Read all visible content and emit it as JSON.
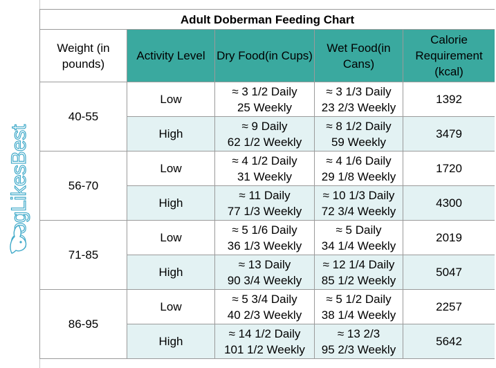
{
  "title": "Adult Doberman Feeding Chart",
  "watermark": "DogLikesBest",
  "colors": {
    "header_teal": "#3aa99f",
    "alt_row": "#e3f2f3",
    "logo_blue": "#3fa9c9"
  },
  "headers": {
    "weight": "Weight (in pounds)",
    "activity": "Activity Level",
    "dry": "Dry Food(in Cups)",
    "wet": "Wet Food(in Cans)",
    "calorie": "Calorie Requirement (kcal)"
  },
  "groups": [
    {
      "weight": "40-55",
      "rows": [
        {
          "activity": "Low",
          "dry_daily": "≈ 3 1/2 Daily",
          "dry_weekly": "25 Weekly",
          "wet_daily": "≈ 3 1/3 Daily",
          "wet_weekly": "23 2/3 Weekly",
          "kcal": "1392"
        },
        {
          "activity": "High",
          "dry_daily": "≈ 9 Daily",
          "dry_weekly": "62 1/2 Weekly",
          "wet_daily": "≈ 8 1/2 Daily",
          "wet_weekly": "59 Weekly",
          "kcal": "3479"
        }
      ]
    },
    {
      "weight": "56-70",
      "rows": [
        {
          "activity": "Low",
          "dry_daily": "≈ 4 1/2 Daily",
          "dry_weekly": "31 Weekly",
          "wet_daily": "≈ 4 1/6 Daily",
          "wet_weekly": "29 1/8 Weekly",
          "kcal": "1720"
        },
        {
          "activity": "High",
          "dry_daily": "≈ 11 Daily",
          "dry_weekly": "77 1/3 Weekly",
          "wet_daily": "≈ 10 1/3 Daily",
          "wet_weekly": "72 3/4 Weekly",
          "kcal": "4300"
        }
      ]
    },
    {
      "weight": "71-85",
      "rows": [
        {
          "activity": "Low",
          "dry_daily": "≈ 5 1/6 Daily",
          "dry_weekly": "36 1/3 Weekly",
          "wet_daily": "≈ 5 Daily",
          "wet_weekly": "34 1/4 Weekly",
          "kcal": "2019"
        },
        {
          "activity": "High",
          "dry_daily": "≈ 13 Daily",
          "dry_weekly": "90 3/4 Weekly",
          "wet_daily": "≈ 12 1/4 Daily",
          "wet_weekly": "85 1/2 Weekly",
          "kcal": "5047"
        }
      ]
    },
    {
      "weight": "86-95",
      "rows": [
        {
          "activity": "Low",
          "dry_daily": "≈ 5 3/4 Daily",
          "dry_weekly": "40 2/3 Weekly",
          "wet_daily": "≈ 5 1/2 Daily",
          "wet_weekly": "38 1/4 Weekly",
          "kcal": "2257"
        },
        {
          "activity": "High",
          "dry_daily": "≈ 14 1/2 Daily",
          "dry_weekly": "101 1/2 Weekly",
          "wet_daily": "≈ 13 2/3",
          "wet_weekly": "95 2/3 Weekly",
          "kcal": "5642"
        }
      ]
    }
  ]
}
